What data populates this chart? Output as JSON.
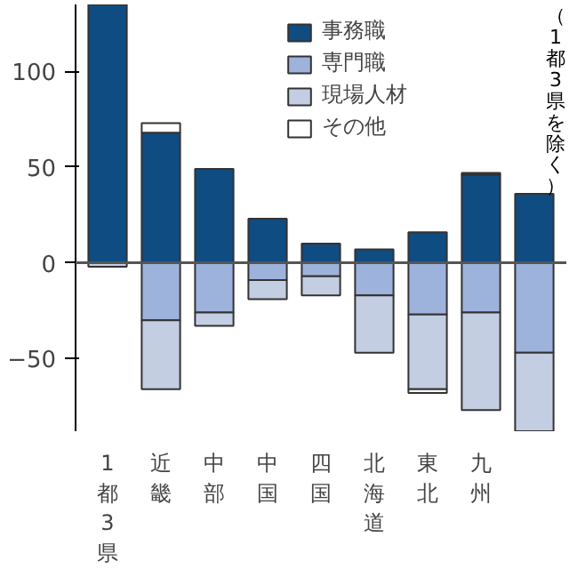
{
  "chart_data": {
    "type": "bar",
    "stacked": true,
    "categories": [
      "1都3県",
      "近畿",
      "中部",
      "中国",
      "四国",
      "北海道",
      "東北",
      "九州",
      null
    ],
    "series": [
      {
        "name": "事務職",
        "color": "#0f4c81",
        "values": [
          135,
          68,
          49,
          23,
          10,
          7,
          16,
          46,
          36
        ]
      },
      {
        "name": "専門職",
        "color": "#9db3dc",
        "values": [
          0,
          -30,
          -26,
          -9,
          -7,
          -17,
          -27,
          -26,
          -47
        ]
      },
      {
        "name": "現場人材",
        "color": "#c3cee3",
        "values": [
          -2,
          -36,
          -7,
          -10,
          -10,
          -30,
          -39,
          -51,
          -41
        ]
      },
      {
        "name": "その他",
        "color": "#ffffff",
        "values": [
          0,
          5,
          0,
          0,
          0,
          0,
          -2,
          1,
          0
        ]
      }
    ],
    "ylim": [
      -88,
      135
    ],
    "yticks": [
      -50,
      0,
      50,
      100
    ],
    "ref_lines": [
      {
        "axis": "y",
        "value": 0,
        "color": "#555555"
      }
    ],
    "annotations": [
      "（1都3県を除く）"
    ],
    "grid": false,
    "legend": "top right"
  }
}
